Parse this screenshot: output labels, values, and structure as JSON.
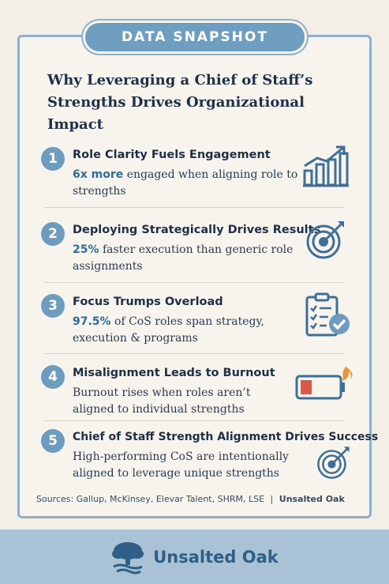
{
  "banner": "DATA SNAPSHOT",
  "title_line1": "Why Leveraging a Chief of Staff’s",
  "title_line2": "Strengths Drives Organizational Impact",
  "items": [
    {
      "number": "1",
      "heading": "Role Clarity Fuels Engagement",
      "highlight": "6x more",
      "text": " engaged when aligning role to strengths",
      "icon": "bar-chart-icon"
    },
    {
      "number": "2",
      "heading": "Deploying Strategically Drives Results",
      "highlight": "25%",
      "text": " faster execution than generic role assignments",
      "icon": "target-icon"
    },
    {
      "number": "3",
      "heading": "Focus Trumps Overload",
      "highlight": "97.5%",
      "text": " of CoS roles span strategy, execution & programs",
      "icon": "checklist-icon"
    },
    {
      "number": "4",
      "heading": "Misalignment Leads to Burnout",
      "highlight": "",
      "text": "Burnout rises when roles aren’t aligned to individual strengths",
      "icon": "low-battery-icon"
    },
    {
      "number": "5",
      "heading": "Chief of Staff Strength Alignment Drives Success",
      "highlight": "",
      "text": "High-performing CoS are intentionally aligned to leverage unique strengths",
      "icon": "target-icon"
    }
  ],
  "sources_text": "Sources: Gallup, McKinsey, Elevar Talent, SHRM, LSE",
  "sources_sep": "|",
  "sources_brand": "Unsalted Oak",
  "footer_brand": "Unsalted Oak",
  "colors": {
    "accent": "#6e9cbf",
    "highlight": "#2f6c99",
    "footer": "#a9c2d5",
    "burnout": "#d9584a",
    "flame": "#e8963a"
  }
}
